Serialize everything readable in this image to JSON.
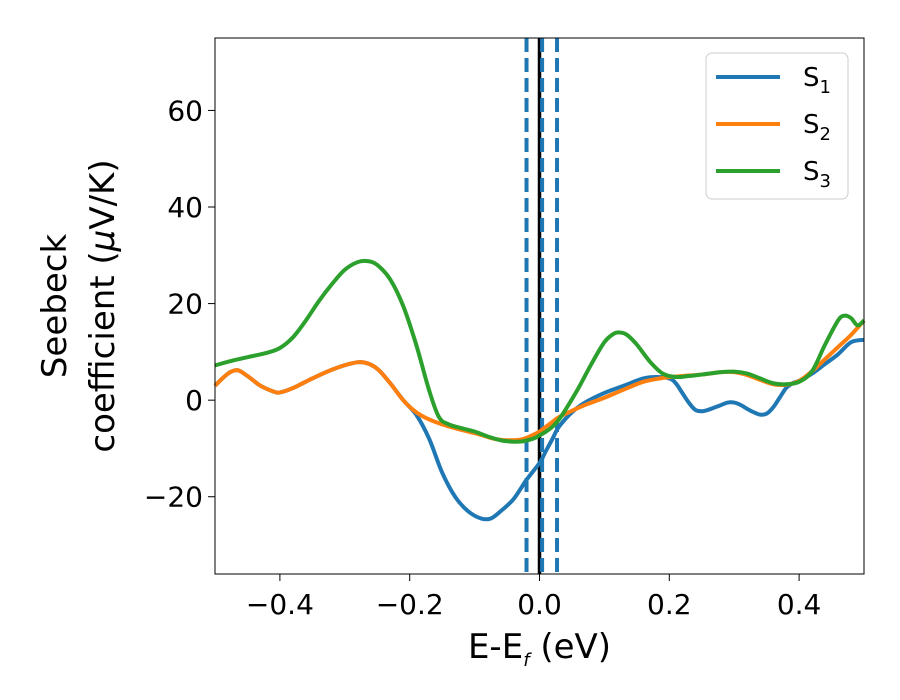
{
  "chart_data": {
    "type": "line",
    "title": "",
    "xlabel": {
      "main": "E-E",
      "sub": "f",
      "suffix": " (eV)"
    },
    "ylabel": {
      "line1": "Seebeck",
      "line2_text": "coefficient  (",
      "mu": "μ",
      "line2_unit": "V/K)"
    },
    "xlim": [
      -0.5,
      0.5
    ],
    "ylim": [
      -36,
      75
    ],
    "x_ticks": [
      -0.4,
      -0.2,
      0.0,
      0.2,
      0.4
    ],
    "x_tick_labels": [
      "−0.4",
      "−0.2",
      "0.0",
      "0.2",
      "0.4"
    ],
    "y_ticks": [
      -20,
      0,
      20,
      40,
      60
    ],
    "y_tick_labels": [
      "−20",
      "0",
      "20",
      "40",
      "60"
    ],
    "grid": false,
    "legend_position": "top-right",
    "vlines": [
      {
        "x": 0.0,
        "color": "#000000",
        "style": "solid"
      },
      {
        "x": -0.02,
        "color": "#1f77b4",
        "style": "dashed"
      },
      {
        "x": 0.004,
        "color": "#1f77b4",
        "style": "dashed"
      },
      {
        "x": 0.027,
        "color": "#1f77b4",
        "style": "dashed"
      }
    ],
    "series": [
      {
        "name": "S",
        "sub": "1",
        "color": "#1f77b4",
        "x": [
          -0.5,
          -0.48,
          -0.465,
          -0.45,
          -0.43,
          -0.41,
          -0.4,
          -0.38,
          -0.35,
          -0.32,
          -0.29,
          -0.27,
          -0.25,
          -0.23,
          -0.21,
          -0.19,
          -0.17,
          -0.15,
          -0.13,
          -0.11,
          -0.09,
          -0.075,
          -0.06,
          -0.04,
          -0.02,
          0.0,
          0.01,
          0.02,
          0.03,
          0.05,
          0.07,
          0.1,
          0.13,
          0.16,
          0.18,
          0.2,
          0.21,
          0.22,
          0.23,
          0.24,
          0.25,
          0.26,
          0.27,
          0.28,
          0.29,
          0.3,
          0.31,
          0.32,
          0.33,
          0.34,
          0.35,
          0.36,
          0.37,
          0.38,
          0.39,
          0.4,
          0.42,
          0.44,
          0.46,
          0.48,
          0.5
        ],
        "y": [
          3,
          5.5,
          6.2,
          5,
          3,
          1.8,
          1.6,
          2.5,
          4.5,
          6.3,
          7.6,
          7.8,
          6.5,
          3.5,
          0,
          -3,
          -8,
          -15,
          -20,
          -23,
          -24.5,
          -24.5,
          -23,
          -20.5,
          -16.5,
          -13,
          -10.5,
          -8,
          -5.5,
          -2.5,
          -0.5,
          1.5,
          3,
          4.5,
          4.8,
          4.5,
          3.5,
          1.5,
          -0.5,
          -2,
          -2.3,
          -2,
          -1.5,
          -1,
          -0.5,
          -0.5,
          -1,
          -1.8,
          -2.5,
          -3,
          -2.8,
          -1.5,
          0.5,
          2.5,
          3.5,
          4,
          5.5,
          7.5,
          9.5,
          12,
          12.5
        ]
      },
      {
        "name": "S",
        "sub": "2",
        "color": "#ff7f0e",
        "x": [
          -0.5,
          -0.48,
          -0.465,
          -0.45,
          -0.43,
          -0.41,
          -0.4,
          -0.38,
          -0.35,
          -0.32,
          -0.29,
          -0.27,
          -0.25,
          -0.23,
          -0.21,
          -0.19,
          -0.17,
          -0.15,
          -0.13,
          -0.11,
          -0.09,
          -0.07,
          -0.05,
          -0.03,
          -0.02,
          -0.01,
          0.0,
          0.01,
          0.02,
          0.03,
          0.05,
          0.07,
          0.1,
          0.13,
          0.16,
          0.19,
          0.22,
          0.25,
          0.28,
          0.3,
          0.32,
          0.34,
          0.36,
          0.38,
          0.4,
          0.42,
          0.44,
          0.46,
          0.48,
          0.5
        ],
        "y": [
          3,
          5.5,
          6.2,
          5,
          3,
          1.8,
          1.6,
          2.5,
          4.5,
          6.3,
          7.6,
          7.8,
          6.5,
          3.5,
          0,
          -2.5,
          -4,
          -5,
          -5.8,
          -6.5,
          -7.2,
          -8,
          -8.3,
          -8.2,
          -7.8,
          -7.2,
          -6.5,
          -5.5,
          -4.5,
          -3.5,
          -2.2,
          -1,
          0.5,
          2.2,
          3.8,
          4.6,
          5,
          5.3,
          5.8,
          5.8,
          5.2,
          4.2,
          3.3,
          3.2,
          4,
          6,
          8.5,
          11,
          13.5,
          16.5
        ]
      },
      {
        "name": "S",
        "sub": "3",
        "color": "#2ca02c",
        "x": [
          -0.5,
          -0.47,
          -0.44,
          -0.42,
          -0.4,
          -0.38,
          -0.36,
          -0.34,
          -0.32,
          -0.3,
          -0.28,
          -0.265,
          -0.25,
          -0.23,
          -0.21,
          -0.19,
          -0.17,
          -0.155,
          -0.14,
          -0.12,
          -0.1,
          -0.08,
          -0.06,
          -0.04,
          -0.025,
          -0.01,
          0.0,
          0.01,
          0.02,
          0.03,
          0.04,
          0.06,
          0.08,
          0.1,
          0.115,
          0.125,
          0.135,
          0.15,
          0.17,
          0.19,
          0.21,
          0.23,
          0.25,
          0.28,
          0.3,
          0.32,
          0.34,
          0.36,
          0.38,
          0.4,
          0.42,
          0.44,
          0.46,
          0.47,
          0.48,
          0.49,
          0.5
        ],
        "y": [
          7.2,
          8.3,
          9.2,
          9.8,
          10.8,
          13,
          16.5,
          20.5,
          24,
          27,
          28.6,
          28.8,
          28,
          25,
          19.5,
          11.5,
          2,
          -3.5,
          -5,
          -5.8,
          -6.5,
          -7.5,
          -8.3,
          -8.6,
          -8.5,
          -8,
          -7.3,
          -6.5,
          -5.5,
          -4,
          -2,
          2.5,
          7.5,
          12,
          13.8,
          14,
          13.5,
          11.5,
          8,
          5.5,
          4.8,
          5,
          5.3,
          5.8,
          5.9,
          5.5,
          4.5,
          3.5,
          3.3,
          3.8,
          6,
          11.5,
          16.5,
          17.5,
          17,
          15.5,
          16.5
        ]
      }
    ]
  }
}
